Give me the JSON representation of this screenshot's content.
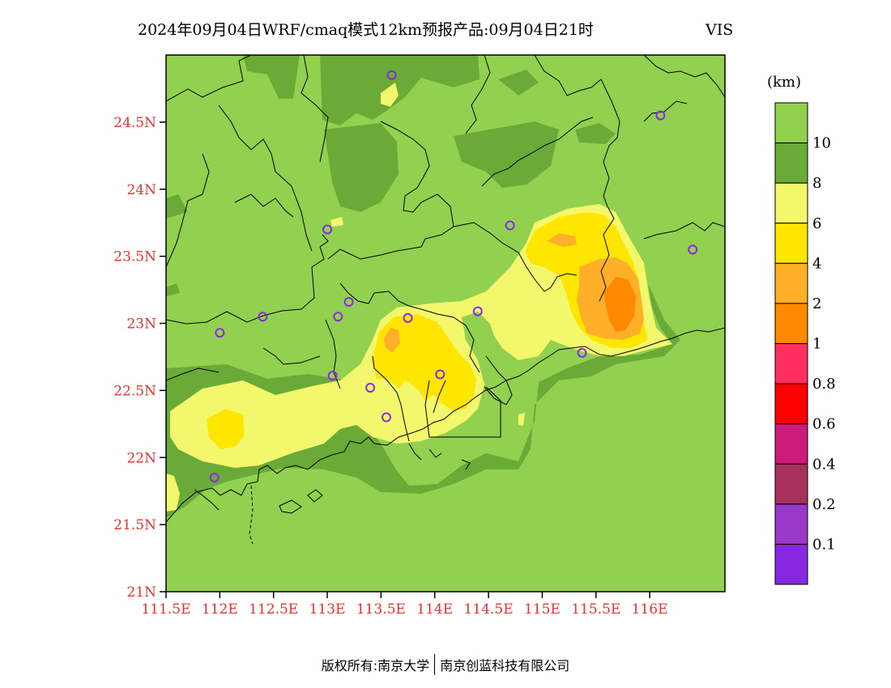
{
  "title": {
    "main": "2024年09月04日WRF/cmaq模式12km预报产品:09月04日21时",
    "variable": "VIS",
    "variable_color": "#e8322f"
  },
  "axis_color": "#e8322f",
  "x_ticks": [
    "111.5E",
    "112E",
    "112.5E",
    "113E",
    "113.5E",
    "114E",
    "114.5E",
    "115E",
    "115.5E",
    "116E"
  ],
  "y_ticks": [
    "24.5N",
    "24N",
    "23.5N",
    "23N",
    "22.5N",
    "22N",
    "21.5N",
    "21N"
  ],
  "map": {
    "extent": {
      "lon_min": 111.5,
      "lon_max": 116.7,
      "lat_min": 21.0,
      "lat_max": 25.0
    },
    "base_color": "#92d14f",
    "station_marker_color": "#8a2be2",
    "stations": [
      {
        "lon": 113.6,
        "lat": 24.85
      },
      {
        "lon": 116.1,
        "lat": 24.55
      },
      {
        "lon": 113.0,
        "lat": 23.7
      },
      {
        "lon": 114.7,
        "lat": 23.73
      },
      {
        "lon": 116.4,
        "lat": 23.55
      },
      {
        "lon": 112.0,
        "lat": 22.93
      },
      {
        "lon": 112.4,
        "lat": 23.05
      },
      {
        "lon": 113.1,
        "lat": 23.05
      },
      {
        "lon": 113.2,
        "lat": 23.16
      },
      {
        "lon": 113.75,
        "lat": 23.04
      },
      {
        "lon": 114.4,
        "lat": 23.09
      },
      {
        "lon": 113.05,
        "lat": 22.61
      },
      {
        "lon": 113.4,
        "lat": 22.52
      },
      {
        "lon": 114.05,
        "lat": 22.62
      },
      {
        "lon": 113.55,
        "lat": 22.3
      },
      {
        "lon": 115.37,
        "lat": 22.78
      },
      {
        "lon": 111.95,
        "lat": 21.85
      }
    ]
  },
  "legend": {
    "unit": "(km)",
    "colors": [
      "#92d14f",
      "#6aab37",
      "#f3f76c",
      "#ffe600",
      "#ffb028",
      "#ff8a00",
      "#ff3060",
      "#ff0000",
      "#cc1b7a",
      "#a8305c",
      "#9a39c9",
      "#8827e0"
    ],
    "labels": [
      "10",
      "8",
      "6",
      "4",
      "2",
      "1",
      "0.8",
      "0.6",
      "0.4",
      "0.2",
      "0.1"
    ]
  },
  "footer": {
    "left": "版权所有:南京大学",
    "right": "南京创蓝科技有限公司"
  }
}
